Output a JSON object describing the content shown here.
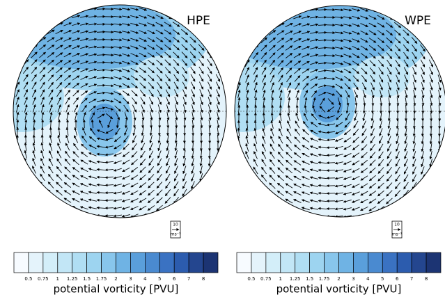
{
  "panels": [
    {
      "title": "HPE",
      "colorbar": {
        "label": "potential vorticity [PVU]",
        "ticks": [
          0.5,
          0.75,
          1,
          1.25,
          1.5,
          1.75,
          2,
          3,
          4,
          5,
          6,
          7,
          8
        ],
        "colors": [
          "#f7fbff",
          "#e4f3fb",
          "#d3eef9",
          "#c2e6f6",
          "#b0def3",
          "#9dd4f0",
          "#88c6ec",
          "#6fb3e4",
          "#5a9fdb",
          "#4a8ad0",
          "#3a72c2",
          "#2c5cae",
          "#24468f",
          "#1c3473"
        ]
      },
      "reference_vector": {
        "value": "10",
        "unit": "ms⁻¹"
      }
    },
    {
      "title": "WPE",
      "colorbar": {
        "label": "potential vorticity [PVU]",
        "ticks": [
          0.5,
          0.75,
          1,
          1.25,
          1.5,
          1.75,
          2,
          3,
          4,
          5,
          6,
          7,
          8
        ],
        "colors": [
          "#f7fbff",
          "#e4f3fb",
          "#d3eef9",
          "#c2e6f6",
          "#b0def3",
          "#9dd4f0",
          "#88c6ec",
          "#6fb3e4",
          "#5a9fdb",
          "#4a8ad0",
          "#3a72c2",
          "#2c5cae",
          "#24468f",
          "#1c3473"
        ]
      },
      "reference_vector": {
        "value": "10",
        "unit": "ms⁻¹"
      }
    }
  ]
}
